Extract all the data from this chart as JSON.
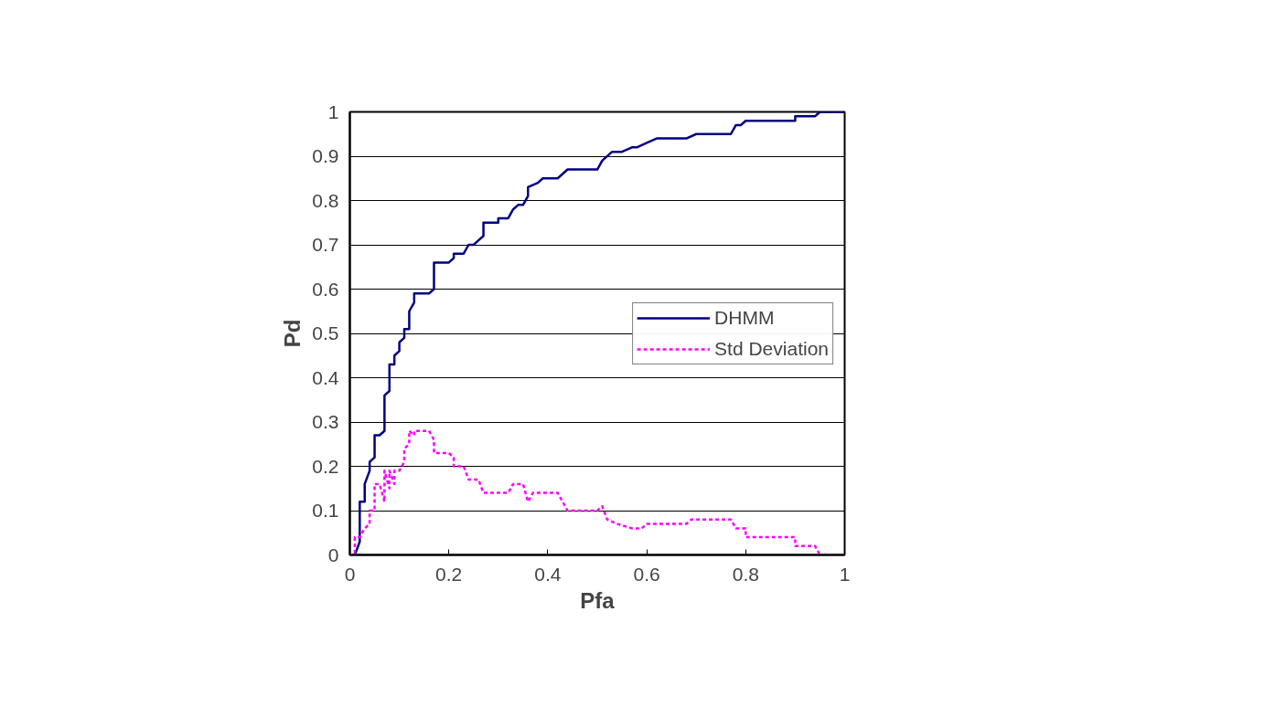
{
  "chart_data": {
    "type": "line",
    "xlabel": "Pfa",
    "ylabel": "Pd",
    "xlim": [
      0,
      1
    ],
    "ylim": [
      0,
      1
    ],
    "xticks": [
      0,
      0.2,
      0.4,
      0.6,
      0.8,
      1
    ],
    "yticks": [
      0,
      0.1,
      0.2,
      0.3,
      0.4,
      0.5,
      0.6,
      0.7,
      0.8,
      0.9,
      1
    ],
    "grid": "y",
    "legend": "right",
    "marker": "none",
    "series": [
      {
        "name": "DHMM",
        "color": "#000080",
        "line_style": "solid",
        "x": [
          0,
          0.01,
          0.02,
          0.02,
          0.03,
          0.03,
          0.04,
          0.04,
          0.05,
          0.05,
          0.06,
          0.07,
          0.07,
          0.08,
          0.08,
          0.09,
          0.09,
          0.1,
          0.1,
          0.11,
          0.11,
          0.12,
          0.12,
          0.13,
          0.13,
          0.16,
          0.17,
          0.17,
          0.2,
          0.21,
          0.21,
          0.23,
          0.24,
          0.25,
          0.26,
          0.27,
          0.27,
          0.3,
          0.3,
          0.32,
          0.33,
          0.34,
          0.35,
          0.36,
          0.36,
          0.38,
          0.39,
          0.42,
          0.44,
          0.5,
          0.51,
          0.53,
          0.55,
          0.57,
          0.58,
          0.6,
          0.62,
          0.68,
          0.7,
          0.77,
          0.78,
          0.79,
          0.8,
          0.9,
          0.9,
          0.94,
          0.95,
          1
        ],
        "values": [
          0,
          0,
          0.03,
          0.12,
          0.12,
          0.16,
          0.19,
          0.21,
          0.22,
          0.27,
          0.27,
          0.28,
          0.36,
          0.37,
          0.43,
          0.43,
          0.45,
          0.46,
          0.48,
          0.49,
          0.51,
          0.51,
          0.55,
          0.57,
          0.59,
          0.59,
          0.6,
          0.66,
          0.66,
          0.67,
          0.68,
          0.68,
          0.7,
          0.7,
          0.71,
          0.72,
          0.75,
          0.75,
          0.76,
          0.76,
          0.78,
          0.79,
          0.79,
          0.81,
          0.83,
          0.84,
          0.85,
          0.85,
          0.87,
          0.87,
          0.89,
          0.91,
          0.91,
          0.92,
          0.92,
          0.93,
          0.94,
          0.94,
          0.95,
          0.95,
          0.97,
          0.97,
          0.98,
          0.98,
          0.99,
          0.99,
          1,
          1
        ]
      },
      {
        "name": "Std Deviation",
        "color": "#ff00ff",
        "line_style": "dashed",
        "x": [
          0,
          0.01,
          0.01,
          0.02,
          0.03,
          0.04,
          0.04,
          0.05,
          0.05,
          0.06,
          0.07,
          0.07,
          0.08,
          0.08,
          0.09,
          0.09,
          0.1,
          0.11,
          0.11,
          0.12,
          0.12,
          0.13,
          0.13,
          0.16,
          0.17,
          0.17,
          0.2,
          0.21,
          0.21,
          0.23,
          0.24,
          0.26,
          0.27,
          0.32,
          0.33,
          0.35,
          0.36,
          0.37,
          0.42,
          0.44,
          0.5,
          0.51,
          0.52,
          0.54,
          0.57,
          0.59,
          0.6,
          0.68,
          0.69,
          0.77,
          0.78,
          0.8,
          0.8,
          0.9,
          0.9,
          0.94,
          0.95,
          1
        ],
        "values": [
          0,
          0,
          0.04,
          0.04,
          0.06,
          0.07,
          0.1,
          0.1,
          0.16,
          0.16,
          0.12,
          0.19,
          0.15,
          0.19,
          0.16,
          0.19,
          0.19,
          0.21,
          0.24,
          0.25,
          0.28,
          0.27,
          0.28,
          0.28,
          0.26,
          0.23,
          0.23,
          0.22,
          0.2,
          0.2,
          0.17,
          0.17,
          0.14,
          0.14,
          0.16,
          0.16,
          0.12,
          0.14,
          0.14,
          0.1,
          0.1,
          0.11,
          0.08,
          0.07,
          0.06,
          0.06,
          0.07,
          0.07,
          0.08,
          0.08,
          0.06,
          0.06,
          0.04,
          0.04,
          0.02,
          0.02,
          0,
          0
        ]
      }
    ]
  }
}
